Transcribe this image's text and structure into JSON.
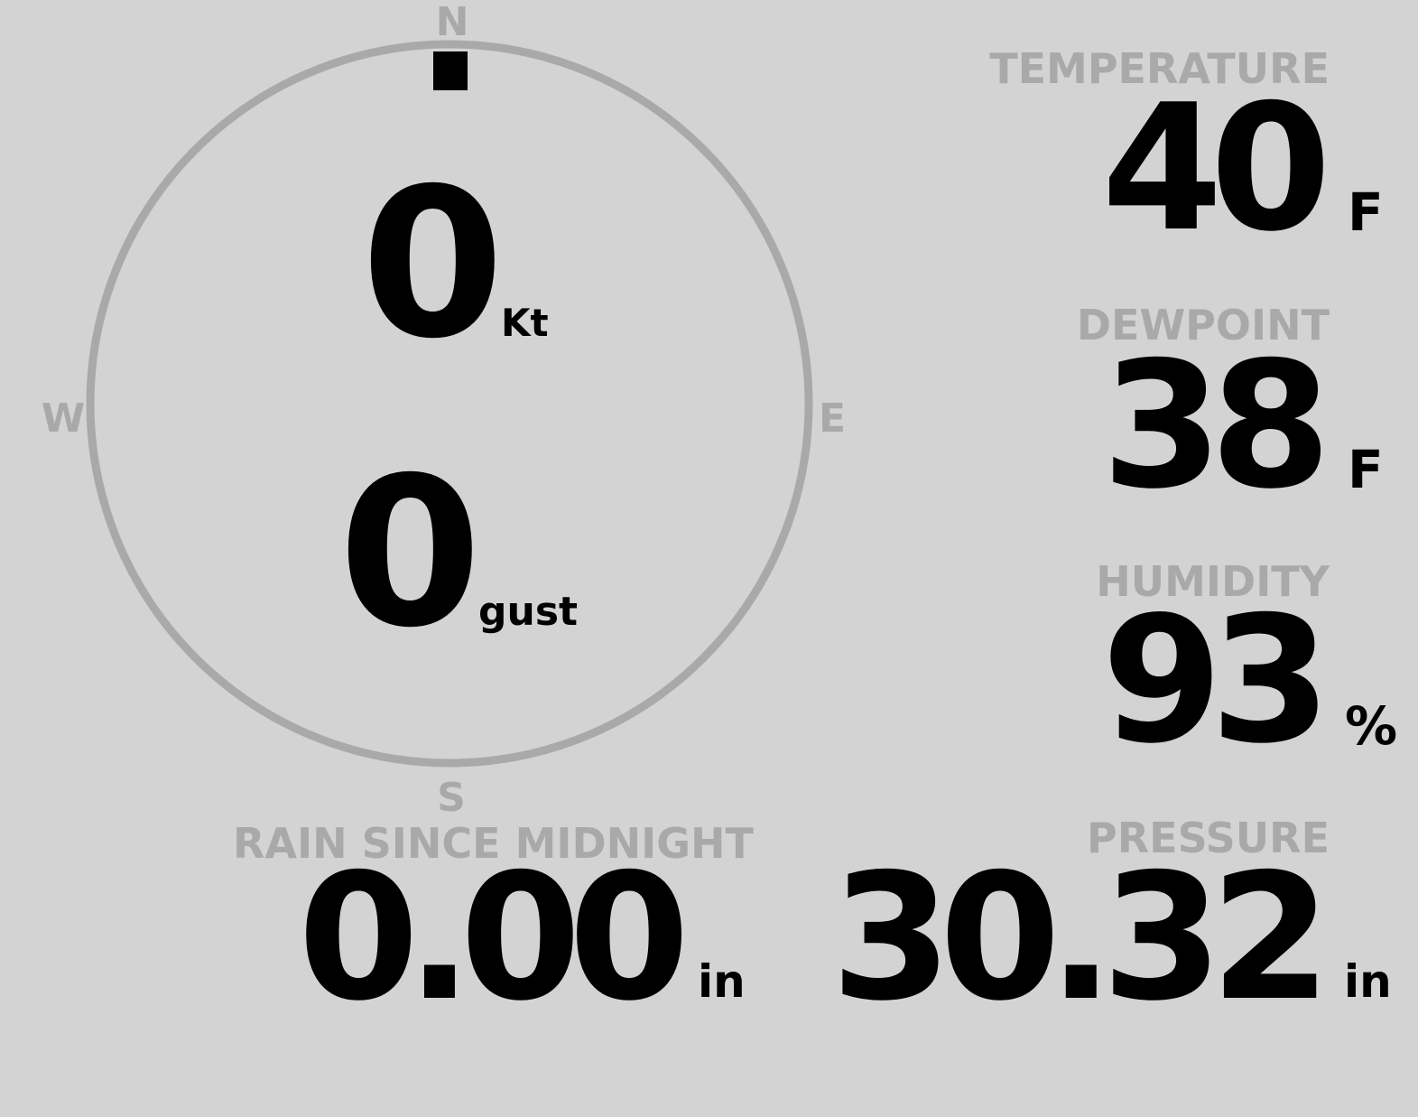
{
  "colors": {
    "background": "#d3d3d3",
    "label": "#a9a9a9",
    "value": "#000000"
  },
  "compass": {
    "north": "N",
    "east": "E",
    "south": "S",
    "west": "W",
    "wind_direction_deg": 0
  },
  "wind": {
    "speed": "0",
    "speed_unit": "Kt",
    "gust": "0",
    "gust_unit": "gust"
  },
  "temperature": {
    "label": "TEMPERATURE",
    "value": "40",
    "unit": "F"
  },
  "dewpoint": {
    "label": "DEWPOINT",
    "value": "38",
    "unit": "F"
  },
  "humidity": {
    "label": "HUMIDITY",
    "value": "93",
    "unit": "%"
  },
  "rain": {
    "label": "RAIN SINCE MIDNIGHT",
    "value": "0.00",
    "unit": "in"
  },
  "pressure": {
    "label": "PRESSURE",
    "value": "30.32",
    "unit": "in"
  }
}
